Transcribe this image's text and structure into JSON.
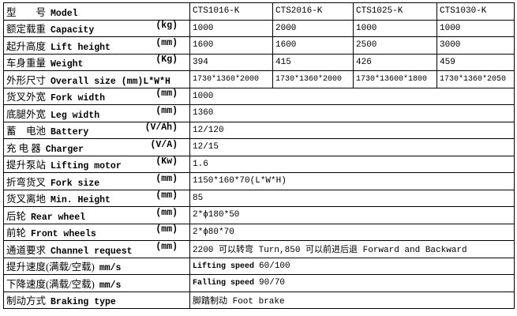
{
  "table": {
    "rows": [
      {
        "zh": "型　　号",
        "en": "Model",
        "cells": [
          "CTS1016-K",
          "CTS2016-K",
          "CTS1025-K",
          "CTS1030-K"
        ]
      },
      {
        "zh": "额定载重",
        "en": "Capacity",
        "unit": "(kg)",
        "cells": [
          "1000",
          "2000",
          "1000",
          "1000"
        ]
      },
      {
        "zh": "起升高度",
        "en": "Lift height",
        "unit": "(mm)",
        "cells": [
          "1600",
          "1600",
          "2500",
          "3000"
        ]
      },
      {
        "zh": "车身重量",
        "en": "Weight",
        "unit": "(Kg)",
        "cells": [
          "394",
          "415",
          "426",
          "459"
        ]
      },
      {
        "zh": "外形尺寸",
        "en": "Overall size (mm)L*W*H",
        "cells": [
          "1730*1360*2000",
          "1730*1360*2000",
          "1730*13600*1800",
          "1730*1360*2050"
        ]
      },
      {
        "zh": "货叉外宽",
        "en": "Fork width",
        "unit": "(mm)",
        "cells": [
          "1000"
        ]
      },
      {
        "zh": "底腿外宽",
        "en": "Leg width",
        "unit": "(mm)",
        "cells": [
          "1360"
        ]
      },
      {
        "zh": "蓄　电池",
        "en": "Battery",
        "unit": "(V/Ah)",
        "cells": [
          "12/120"
        ]
      },
      {
        "zh": "充 电 器",
        "en": "Charger",
        "unit": "(V/A)",
        "cells": [
          "12/15"
        ]
      },
      {
        "zh": "提升泵站",
        "en": "Lifting motor",
        "unit": "(Kw)",
        "cells": [
          "1.6"
        ]
      },
      {
        "zh": "折弯货叉",
        "en": "Fork size",
        "unit": "(mm)",
        "cells": [
          "1150*160*70(L*W*H)"
        ]
      },
      {
        "zh": "货叉离地",
        "en": "Min. Height",
        "unit": "(mm)",
        "cells": [
          "85"
        ]
      },
      {
        "zh": "后轮",
        "en": "Rear wheel",
        "unit": "(mm)",
        "cells": [
          "2*ϕ180*50"
        ]
      },
      {
        "zh": "前轮",
        "en": "Front wheels",
        "unit": "(mm)",
        "cells": [
          "2*ϕ80*70"
        ]
      },
      {
        "zh": "通道要求",
        "en": "Channel request",
        "unit": "(mm)",
        "cells": [
          "2200 可以转弯 Turn,850 可以前进后退  Forward and Backward"
        ]
      },
      {
        "zh": "提升速度(满载/空载)",
        "en": "mm/s",
        "note": "Lifting speed",
        "cells": [
          "60/100"
        ]
      },
      {
        "zh": "下降速度(满载/空载)",
        "en": "mm/s",
        "note": "Falling speed",
        "cells": [
          "90/70"
        ]
      },
      {
        "zh": "制动方式",
        "en": "Braking type",
        "cells": [
          "脚踏制动 Foot brake"
        ]
      }
    ]
  }
}
